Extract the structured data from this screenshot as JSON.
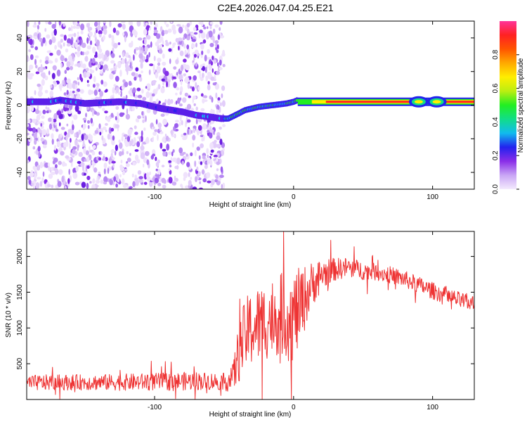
{
  "title": "C2E4.2026.047.04.25.E21",
  "chart_data": [
    {
      "type": "heatmap",
      "xlabel": "Height of straight line (km)",
      "ylabel": "Frequency (Hz)",
      "xlim": [
        -192,
        130
      ],
      "ylim": [
        -50,
        50
      ],
      "xticks": [
        -100,
        0,
        100
      ],
      "xtick_labels": [
        "-100",
        "0",
        "100"
      ],
      "yticks": [
        -40,
        -20,
        0,
        20,
        40
      ],
      "ytick_labels": [
        "-40",
        "-20",
        "0",
        "20",
        "40"
      ],
      "colorbar": {
        "label": "Normalized spectral amplitude",
        "range": [
          0,
          1
        ],
        "ticks": [
          0,
          0.2,
          0.4,
          0.6,
          0.8
        ],
        "tick_labels": [
          "0.0",
          "0.2",
          "0.4",
          "0.6",
          "0.8"
        ],
        "colors": [
          "#f4eafd",
          "#c9a6f5",
          "#8a2ee8",
          "#2222ee",
          "#11bbee",
          "#11dd88",
          "#22ee22",
          "#bbee11",
          "#ffee00",
          "#ffaa00",
          "#ff5500",
          "#ff2222",
          "#ff3399"
        ]
      },
      "noise_region_x": [
        -192,
        -50
      ],
      "ridge": {
        "x": [
          -192,
          -175,
          -168,
          -150,
          -125,
          -110,
          -95,
          -80,
          -70,
          -60,
          -52,
          -47,
          -42,
          -35,
          -25,
          -15,
          -5,
          0,
          3,
          10,
          20,
          40,
          60,
          80,
          90,
          100,
          110,
          130
        ],
        "y": [
          2,
          2,
          3,
          1,
          2,
          1,
          -2,
          -4,
          -6,
          -7,
          -8,
          -8,
          -6,
          -3,
          -1,
          0,
          1,
          2,
          3,
          2,
          2,
          2,
          2,
          2,
          3,
          2,
          2,
          2
        ]
      }
    },
    {
      "type": "line",
      "xlabel": "Height of straight line (km)",
      "ylabel": "SNR (10 * v/v)",
      "xlim": [
        -192,
        130
      ],
      "ylim": [
        0,
        2350
      ],
      "xticks": [
        -100,
        0,
        100
      ],
      "xtick_labels": [
        "-100",
        "0",
        "100"
      ],
      "yticks": [
        500,
        1000,
        1500,
        2000
      ],
      "ytick_labels": [
        "500",
        "1000",
        "1500",
        "2000"
      ],
      "line_color": "#ee3333",
      "series": [
        {
          "name": "SNR",
          "x": [
            -192,
            -170,
            -150,
            -130,
            -110,
            -90,
            -70,
            -50,
            -44,
            -40,
            -35,
            -30,
            -25,
            -20,
            -15,
            -10,
            -5,
            0,
            5,
            10,
            15,
            20,
            30,
            40,
            50,
            60,
            70,
            80,
            90,
            100,
            110,
            120,
            130
          ],
          "y": [
            230,
            240,
            240,
            240,
            245,
            250,
            260,
            250,
            280,
            600,
            900,
            1000,
            1050,
            1100,
            1150,
            1200,
            1150,
            1150,
            1300,
            1500,
            1650,
            1750,
            1820,
            1850,
            1800,
            1780,
            1740,
            1680,
            1600,
            1520,
            1450,
            1380,
            1340
          ],
          "spread": [
            110,
            110,
            110,
            115,
            120,
            125,
            130,
            120,
            200,
            400,
            500,
            550,
            550,
            550,
            560,
            580,
            600,
            650,
            550,
            400,
            300,
            220,
            160,
            140,
            130,
            120,
            120,
            120,
            120,
            120,
            120,
            120,
            120
          ]
        }
      ]
    }
  ]
}
